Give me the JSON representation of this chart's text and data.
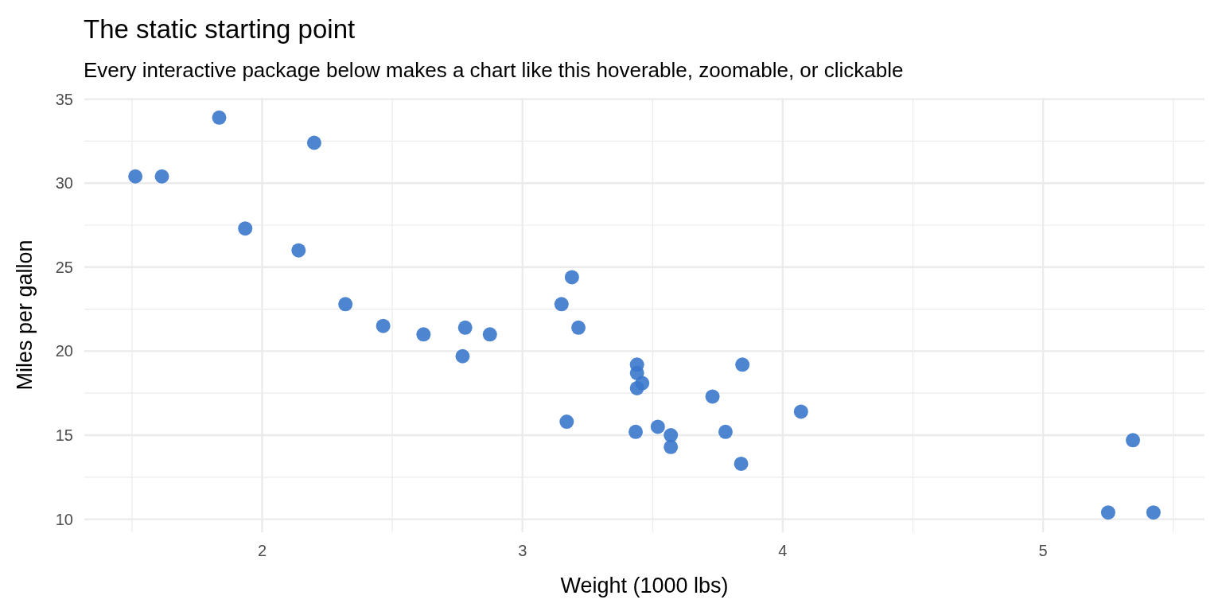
{
  "chart_data": {
    "type": "scatter",
    "title": "The static starting point",
    "subtitle": "Every interactive package below makes a chart like this hoverable, zoomable, or clickable",
    "xlabel": "Weight (1000 lbs)",
    "ylabel": "Miles per gallon",
    "x": [
      2.62,
      2.875,
      2.32,
      3.215,
      3.44,
      3.46,
      3.57,
      3.19,
      3.15,
      3.44,
      3.44,
      4.07,
      3.73,
      3.78,
      5.25,
      5.424,
      5.345,
      2.2,
      1.615,
      1.835,
      2.465,
      3.52,
      3.435,
      3.84,
      3.845,
      1.935,
      2.14,
      1.513,
      3.17,
      2.77,
      3.57,
      2.78
    ],
    "series": [
      {
        "color": "#3b78cc",
        "values": [
          21.0,
          21.0,
          22.8,
          21.4,
          18.7,
          18.1,
          14.3,
          24.4,
          22.8,
          19.2,
          17.8,
          16.4,
          17.3,
          15.2,
          10.4,
          10.4,
          14.7,
          32.4,
          30.4,
          33.9,
          21.5,
          15.5,
          15.2,
          13.3,
          19.2,
          27.3,
          26.0,
          30.4,
          15.8,
          19.7,
          15.0,
          21.4
        ]
      }
    ],
    "xlim": [
      1.317,
      5.62
    ],
    "ylim": [
      9.225,
      35.075
    ],
    "xticks": [
      {
        "value": 1.5,
        "label": null
      },
      2,
      {
        "value": 2.5,
        "label": null
      },
      3,
      {
        "value": 3.5,
        "label": null
      },
      4,
      {
        "value": 4.5,
        "label": null
      },
      5,
      {
        "value": 5.5,
        "label": null
      }
    ],
    "yticks": [
      10,
      {
        "value": 12.5,
        "label": null
      },
      15,
      {
        "value": 17.5,
        "label": null
      },
      20,
      {
        "value": 22.5,
        "label": null
      },
      25,
      {
        "value": 27.5,
        "label": null
      },
      30,
      {
        "value": 32.5,
        "label": null
      },
      35
    ],
    "grid": true,
    "marker": "circle"
  }
}
